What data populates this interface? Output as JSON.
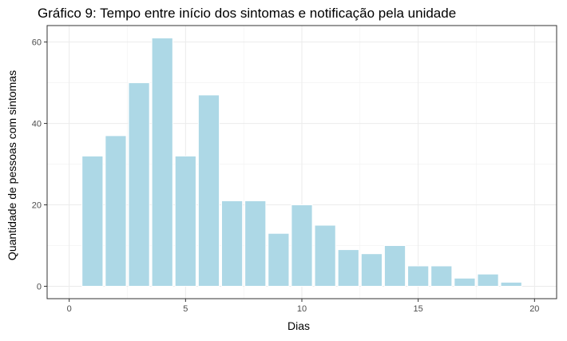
{
  "chart_data": {
    "type": "bar",
    "title": "Gráfico 9: Tempo entre início dos sintomas e notificação pela unidade",
    "xlabel": "Dias",
    "ylabel": "Quantidade de pessoas com sintomas",
    "x": [
      1,
      2,
      3,
      4,
      5,
      6,
      7,
      8,
      9,
      10,
      11,
      12,
      13,
      14,
      15,
      16,
      17,
      18,
      19
    ],
    "values": [
      32,
      37,
      50,
      61,
      32,
      47,
      21,
      21,
      13,
      20,
      15,
      9,
      8,
      10,
      5,
      5,
      2,
      3,
      1
    ],
    "xlim": [
      -0.95,
      20.95
    ],
    "ylim": [
      -3.05,
      64.05
    ],
    "xticks": [
      0,
      5,
      10,
      15,
      20
    ],
    "yticks": [
      0,
      20,
      40,
      60
    ],
    "xtick_labels": [
      "0",
      "5",
      "10",
      "15",
      "20"
    ],
    "ytick_labels": [
      "0",
      "20",
      "40",
      "60"
    ],
    "bar_color": "#add8e6",
    "bar_outline_color": "#ffffff",
    "grid": true,
    "legend": "none"
  }
}
